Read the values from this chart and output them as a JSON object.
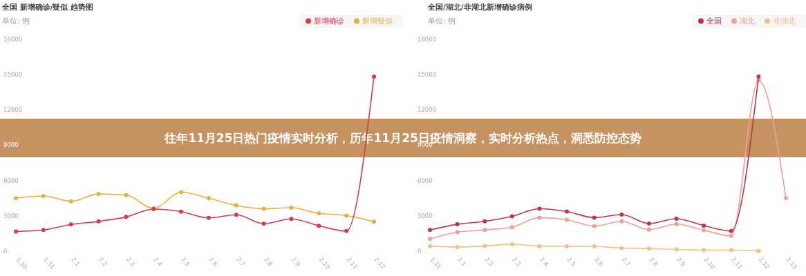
{
  "chart_data": [
    {
      "type": "line",
      "title": "全国 新增确诊/疑似 趋势图",
      "subtitle": "单位: 例",
      "categories": [
        "1.30",
        "1.31",
        "2.1",
        "2.2",
        "2.3",
        "2.4",
        "2.5",
        "2.6",
        "2.7",
        "2.8",
        "2.9",
        "2.10",
        "2.11",
        "2.12"
      ],
      "series": [
        {
          "name": "新增确诊",
          "color": "#d83a4a",
          "values": [
            1670,
            1800,
            2270,
            2530,
            2910,
            3580,
            3360,
            2830,
            3090,
            2340,
            2740,
            2160,
            1710,
            14840
          ]
        },
        {
          "name": "新增疑似",
          "color": "#e8b040",
          "values": [
            4500,
            4690,
            4240,
            4860,
            4760,
            3640,
            5010,
            4500,
            3880,
            3600,
            3690,
            3210,
            3020,
            2510
          ]
        }
      ],
      "ylim": [
        0,
        18000
      ],
      "yticks": [
        0,
        3000,
        6000,
        9000,
        12000,
        15000,
        18000
      ],
      "grid": false,
      "legend": "top right",
      "marker": "circle",
      "annotations": [
        "往年11月25日热门疫情实时分析，历年11月25日疫情洞察，实时分析热点，洞悉防控态势"
      ]
    },
    {
      "type": "line",
      "title": "全国/湖北/非湖北新增确诊病例",
      "subtitle": "单位: 例",
      "categories": [
        "1.31",
        "2.1",
        "2.2",
        "2.3",
        "2.4",
        "2.5",
        "2.6",
        "2.7",
        "2.8",
        "2.9",
        "2.10",
        "2.11",
        "2.12",
        "2.13"
      ],
      "series": [
        {
          "name": "全国",
          "color": "#c0334a",
          "values": [
            1800,
            2280,
            2540,
            2960,
            3610,
            3370,
            2850,
            3110,
            2350,
            2760,
            2170,
            1720,
            14830,
            null
          ]
        },
        {
          "name": "湖北",
          "color": "#f0a090",
          "values": [
            1040,
            1610,
            1800,
            2040,
            2850,
            2670,
            2130,
            2540,
            1830,
            2300,
            1780,
            1300,
            14520,
            4520
          ]
        },
        {
          "name": "非湖北",
          "color": "#f5c080",
          "values": [
            430,
            350,
            430,
            590,
            430,
            410,
            410,
            260,
            220,
            150,
            90,
            90,
            20,
            null
          ]
        }
      ],
      "ylim": [
        0,
        18000
      ],
      "yticks": [
        0,
        3000,
        6000,
        9000,
        12000,
        15000,
        18000
      ],
      "grid": false,
      "legend": "top right",
      "marker": "circle"
    }
  ]
}
